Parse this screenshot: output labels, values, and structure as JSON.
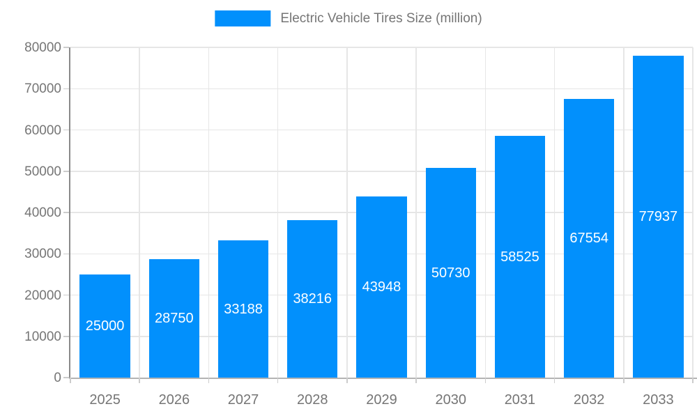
{
  "legend": {
    "label": "Electric Vehicle Tires Size (million)"
  },
  "chart_data": {
    "type": "bar",
    "title": "Electric Vehicle Tires Size (million)",
    "series_name": "Electric Vehicle Tires Size (million)",
    "categories": [
      "2025",
      "2026",
      "2027",
      "2028",
      "2029",
      "2030",
      "2031",
      "2032",
      "2033"
    ],
    "values": [
      25000,
      28750,
      33188,
      38216,
      43948,
      50730,
      58525,
      67554,
      77937
    ],
    "xlabel": "",
    "ylabel": "",
    "ylim": [
      0,
      80000
    ],
    "ytick_step": 10000,
    "yticks": [
      0,
      10000,
      20000,
      30000,
      40000,
      50000,
      60000,
      70000,
      80000
    ],
    "grid": true,
    "legend_position": "top",
    "bar_width_fraction": 0.73,
    "value_label_position": "center",
    "colors": {
      "bar": "#0290fc",
      "bar_label": "#ffffff",
      "axis_text": "#757575",
      "legend_text": "#757575",
      "grid_line": "#e6e6e6",
      "axis_line_y": "#8a8a8a",
      "baseline": "#b3b3b3",
      "tick": "#cccccc",
      "background": "#ffffff"
    }
  }
}
